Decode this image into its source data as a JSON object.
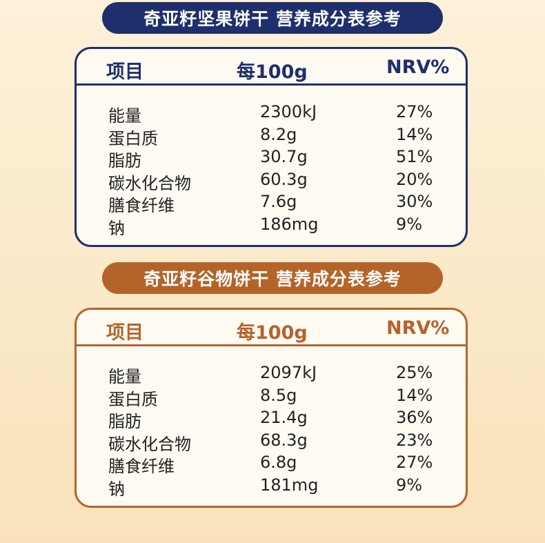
{
  "tables": [
    {
      "title": "奇亚籽坚果饼干 营养成分表参考",
      "headers": [
        "项目",
        "每100g",
        "NRV%"
      ],
      "rows": [
        [
          "能量",
          "2300kJ",
          "27%"
        ],
        [
          "蛋白质",
          "8.2g",
          "14%"
        ],
        [
          "脂肪",
          "30.7g",
          "51%"
        ],
        [
          "碳水化合物",
          "60.3g",
          "20%"
        ],
        [
          "膳食纤维",
          "7.6g",
          "30%"
        ],
        [
          "钠",
          "186mg",
          "9%"
        ]
      ],
      "accent": "#1e2f6b"
    },
    {
      "title": "奇亚籽谷物饼干 营养成分表参考",
      "headers": [
        "项目",
        "每100g",
        "NRV%"
      ],
      "rows": [
        [
          "能量",
          "2097kJ",
          "25%"
        ],
        [
          "蛋白质",
          "8.5g",
          "14%"
        ],
        [
          "脂肪",
          "21.4g",
          "36%"
        ],
        [
          "碳水化合物",
          "68.3g",
          "23%"
        ],
        [
          "膳食纤维",
          "6.8g",
          "27%"
        ],
        [
          "钠",
          "181mg",
          "9%"
        ]
      ],
      "accent": "#b4642a"
    }
  ]
}
